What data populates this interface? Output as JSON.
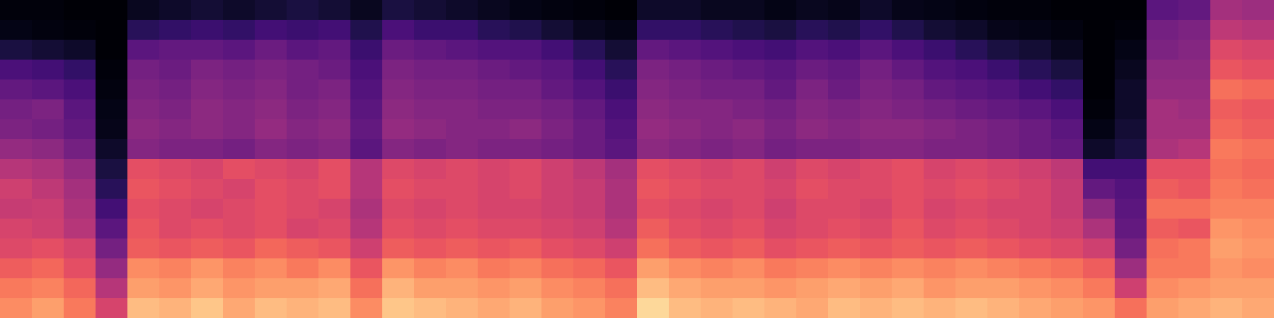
{
  "chart_data": {
    "type": "heatmap",
    "color": "magma",
    "tick_labels": false,
    "color_range": [
      0,
      100
    ],
    "cells": [
      [
        76,
        72,
        66,
        60,
        58,
        54,
        56,
        50,
        42,
        36,
        34,
        30,
        24,
        12,
        4,
        2
      ],
      [
        80,
        74,
        68,
        62,
        56,
        55,
        52,
        48,
        40,
        34,
        36,
        28,
        22,
        10,
        3,
        2
      ],
      [
        72,
        68,
        62,
        58,
        50,
        48,
        46,
        42,
        34,
        30,
        28,
        24,
        18,
        8,
        2,
        1
      ],
      [
        58,
        50,
        42,
        34,
        28,
        22,
        16,
        12,
        8,
        5,
        4,
        3,
        2,
        1,
        1,
        1
      ],
      [
        86,
        80,
        76,
        66,
        64,
        62,
        64,
        62,
        38,
        40,
        38,
        36,
        34,
        28,
        16,
        6
      ],
      [
        84,
        78,
        74,
        64,
        60,
        60,
        62,
        60,
        36,
        38,
        36,
        34,
        32,
        30,
        18,
        8
      ],
      [
        88,
        82,
        78,
        66,
        62,
        58,
        60,
        58,
        36,
        40,
        40,
        38,
        36,
        30,
        20,
        10
      ],
      [
        82,
        78,
        74,
        64,
        60,
        60,
        58,
        62,
        34,
        38,
        38,
        36,
        34,
        28,
        18,
        8
      ],
      [
        86,
        80,
        76,
        68,
        62,
        62,
        62,
        60,
        38,
        42,
        40,
        38,
        36,
        32,
        22,
        10
      ],
      [
        84,
        80,
        72,
        66,
        58,
        60,
        60,
        58,
        36,
        38,
        36,
        34,
        34,
        28,
        20,
        12
      ],
      [
        86,
        82,
        76,
        64,
        60,
        58,
        62,
        62,
        38,
        40,
        38,
        36,
        32,
        30,
        22,
        10
      ],
      [
        76,
        70,
        64,
        56,
        50,
        48,
        50,
        50,
        28,
        30,
        28,
        26,
        24,
        20,
        14,
        6
      ],
      [
        88,
        84,
        78,
        66,
        62,
        60,
        62,
        60,
        38,
        42,
        40,
        38,
        36,
        32,
        24,
        12
      ],
      [
        86,
        80,
        74,
        64,
        60,
        58,
        60,
        58,
        36,
        40,
        38,
        36,
        34,
        30,
        20,
        10
      ],
      [
        84,
        80,
        76,
        66,
        62,
        60,
        60,
        60,
        38,
        38,
        38,
        36,
        34,
        28,
        20,
        8
      ],
      [
        82,
        78,
        72,
        64,
        60,
        58,
        58,
        58,
        36,
        38,
        36,
        34,
        32,
        26,
        16,
        6
      ],
      [
        84,
        80,
        74,
        66,
        60,
        58,
        60,
        60,
        36,
        40,
        36,
        34,
        30,
        26,
        14,
        4
      ],
      [
        80,
        76,
        70,
        62,
        58,
        56,
        56,
        56,
        34,
        36,
        34,
        30,
        28,
        22,
        10,
        3
      ],
      [
        78,
        74,
        68,
        60,
        56,
        54,
        54,
        52,
        32,
        32,
        30,
        26,
        22,
        16,
        6,
        2
      ],
      [
        74,
        70,
        64,
        56,
        50,
        48,
        48,
        46,
        28,
        26,
        24,
        20,
        16,
        10,
        4,
        1
      ],
      [
        92,
        86,
        80,
        70,
        66,
        62,
        64,
        62,
        40,
        42,
        40,
        38,
        36,
        30,
        18,
        8
      ],
      [
        86,
        82,
        76,
        66,
        62,
        60,
        62,
        60,
        38,
        40,
        38,
        36,
        34,
        28,
        18,
        8
      ],
      [
        84,
        80,
        74,
        64,
        60,
        58,
        60,
        58,
        36,
        38,
        38,
        34,
        32,
        26,
        16,
        6
      ],
      [
        86,
        80,
        76,
        66,
        62,
        60,
        60,
        60,
        38,
        40,
        36,
        34,
        30,
        24,
        14,
        6
      ],
      [
        84,
        78,
        72,
        62,
        58,
        56,
        58,
        56,
        34,
        36,
        34,
        30,
        28,
        22,
        12,
        4
      ],
      [
        82,
        80,
        74,
        64,
        60,
        60,
        62,
        60,
        36,
        40,
        38,
        36,
        32,
        26,
        16,
        6
      ],
      [
        86,
        82,
        76,
        66,
        62,
        60,
        60,
        58,
        36,
        38,
        36,
        32,
        30,
        24,
        14,
        5
      ],
      [
        84,
        80,
        74,
        64,
        60,
        58,
        60,
        60,
        38,
        40,
        38,
        36,
        34,
        28,
        18,
        8
      ],
      [
        86,
        82,
        76,
        66,
        64,
        62,
        62,
        62,
        38,
        40,
        36,
        34,
        30,
        24,
        14,
        5
      ],
      [
        84,
        78,
        74,
        64,
        60,
        58,
        60,
        58,
        36,
        38,
        34,
        30,
        26,
        20,
        10,
        4
      ],
      [
        86,
        80,
        76,
        66,
        62,
        60,
        62,
        60,
        36,
        36,
        32,
        28,
        24,
        16,
        8,
        3
      ],
      [
        84,
        80,
        74,
        64,
        60,
        58,
        60,
        58,
        34,
        34,
        30,
        26,
        20,
        12,
        5,
        2
      ],
      [
        82,
        78,
        72,
        62,
        58,
        58,
        58,
        56,
        32,
        32,
        28,
        22,
        16,
        10,
        4,
        2
      ],
      [
        80,
        76,
        70,
        60,
        56,
        54,
        54,
        52,
        30,
        28,
        24,
        18,
        12,
        6,
        3,
        1
      ],
      [
        78,
        72,
        66,
        56,
        48,
        40,
        30,
        22,
        8,
        4,
        2,
        1,
        1,
        1,
        1,
        1
      ],
      [
        70,
        56,
        44,
        34,
        30,
        28,
        26,
        22,
        12,
        10,
        8,
        8,
        6,
        4,
        2,
        1
      ],
      [
        80,
        76,
        72,
        70,
        66,
        70,
        66,
        62,
        48,
        46,
        46,
        42,
        40,
        36,
        34,
        28
      ],
      [
        82,
        78,
        72,
        72,
        64,
        70,
        64,
        62,
        50,
        46,
        44,
        42,
        40,
        38,
        36,
        30
      ],
      [
        84,
        80,
        78,
        80,
        78,
        74,
        72,
        70,
        72,
        68,
        66,
        70,
        64,
        60,
        52,
        46
      ],
      [
        82,
        80,
        76,
        78,
        76,
        74,
        70,
        68,
        70,
        66,
        64,
        68,
        62,
        58,
        50,
        44
      ]
    ]
  }
}
